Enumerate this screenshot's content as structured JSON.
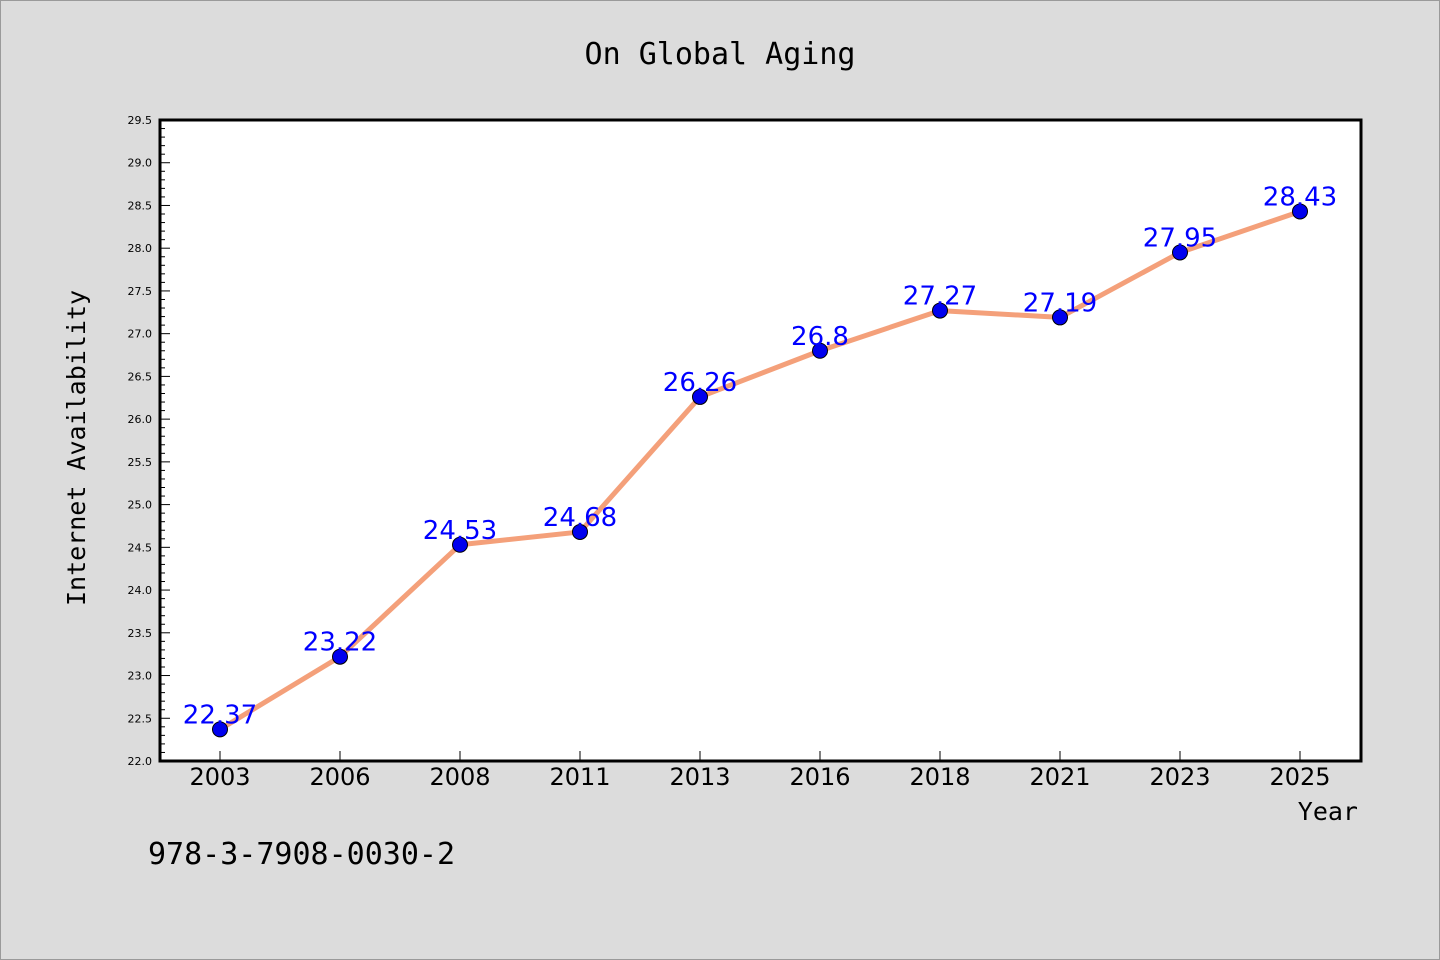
{
  "chart_data": {
    "type": "line",
    "title": "On Global Aging",
    "xlabel": "Year",
    "ylabel": "Internet Availability",
    "categories": [
      "2003",
      "2006",
      "2008",
      "2011",
      "2013",
      "2016",
      "2018",
      "2021",
      "2023",
      "2025"
    ],
    "series": [
      {
        "values": [
          22.37,
          23.22,
          24.53,
          24.68,
          26.26,
          26.8,
          27.27,
          27.19,
          27.95,
          28.43
        ],
        "labels": [
          "22.37",
          "23.22",
          "24.53",
          "24.68",
          "26.26",
          "26.8",
          "27.27",
          "27.19",
          "27.95",
          "28.43"
        ],
        "line_color": "#f4a07a",
        "marker_color": "#0000ee"
      }
    ],
    "ylim": [
      22.0,
      29.5
    ],
    "yticks": [
      "22.0",
      "22.5",
      "23.0",
      "23.5",
      "24.0",
      "24.5",
      "25.0",
      "25.5",
      "26.0",
      "26.5",
      "27.0",
      "27.5",
      "28.0",
      "28.5",
      "29.0",
      "29.5"
    ],
    "grid": false,
    "legend": "none",
    "label_color": "#0000ff"
  },
  "footer": {
    "isbn": "978-3-7908-0030-2"
  }
}
